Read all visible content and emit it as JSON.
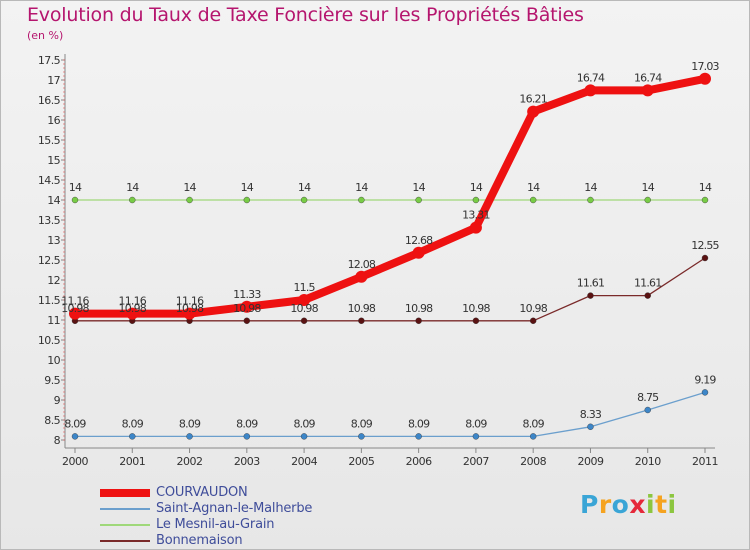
{
  "title": "Evolution du Taux de Taxe Foncière sur les Propriétés Bâties",
  "subtitle": "(en %)",
  "logo": {
    "text": "Proxiti",
    "letters": [
      "P",
      "r",
      "o",
      "x",
      "i",
      "t",
      "i"
    ],
    "colors": [
      "#3aa5d6",
      "#f5a320",
      "#3aa5d6",
      "#e5283a",
      "#8cc63f",
      "#f5a320",
      "#8cc63f"
    ]
  },
  "chart_data": {
    "type": "line",
    "title": "Evolution du Taux de Taxe Foncière sur les Propriétés Bâties",
    "ylabel": "(en %)",
    "xlabel": "",
    "categories": [
      "2000",
      "2001",
      "2002",
      "2003",
      "2004",
      "2005",
      "2006",
      "2007",
      "2008",
      "2009",
      "2010",
      "2011"
    ],
    "ylim": [
      8,
      17.5
    ],
    "yticks": [
      "8",
      "8.5",
      "9",
      "9.5",
      "10",
      "10.5",
      "11",
      "11.5",
      "12",
      "12.5",
      "13",
      "13.5",
      "14",
      "14.5",
      "15",
      "15.5",
      "16",
      "16.5",
      "17",
      "17.5"
    ],
    "grid": false,
    "legend_position": "bottom-left",
    "series": [
      {
        "name": "COURVAUDON",
        "color": "#ee1111",
        "emphasis": true,
        "values": [
          11.16,
          11.16,
          11.16,
          11.33,
          11.5,
          12.08,
          12.68,
          13.31,
          16.21,
          16.74,
          16.74,
          17.03
        ],
        "labels": [
          "11.16",
          "11.16",
          "11.16",
          "11.33",
          "11.5",
          "12.08",
          "12.68",
          "13.31",
          "16.21",
          "16.74",
          "16.74",
          "17.03"
        ]
      },
      {
        "name": "Saint-Agnan-le-Malherbe",
        "color": "#6b9fcd",
        "marker": "#3d86c8",
        "values": [
          8.09,
          8.09,
          8.09,
          8.09,
          8.09,
          8.09,
          8.09,
          8.09,
          8.09,
          8.33,
          8.75,
          9.19
        ],
        "labels": [
          "8.09",
          "8.09",
          "8.09",
          "8.09",
          "8.09",
          "8.09",
          "8.09",
          "8.09",
          "8.09",
          "8.33",
          "8.75",
          "9.19"
        ]
      },
      {
        "name": "Le Mesnil-au-Grain",
        "color": "#9fd87a",
        "marker": "#78cc46",
        "values": [
          14,
          14,
          14,
          14,
          14,
          14,
          14,
          14,
          14,
          14,
          14,
          14
        ],
        "labels": [
          "14",
          "14",
          "14",
          "14",
          "14",
          "14",
          "14",
          "14",
          "14",
          "14",
          "14",
          "14"
        ]
      },
      {
        "name": "Bonnemaison",
        "color": "#7a2a2a",
        "marker": "#5a1212",
        "values": [
          10.98,
          10.98,
          10.98,
          10.98,
          10.98,
          10.98,
          10.98,
          10.98,
          10.98,
          11.61,
          11.61,
          12.55
        ],
        "labels": [
          "10.98",
          "10.98",
          "10.98",
          "10.98",
          "10.98",
          "10.98",
          "10.98",
          "10.98",
          "10.98",
          "11.61",
          "11.61",
          "12.55"
        ]
      }
    ]
  }
}
